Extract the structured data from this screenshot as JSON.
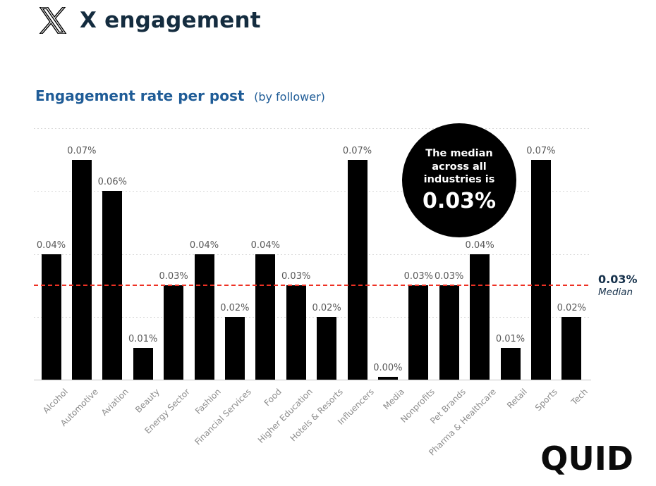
{
  "header": {
    "title": "X engagement",
    "logo": "x-logo"
  },
  "subtitle": {
    "main": "Engagement rate per post",
    "suffix": "(by follower)"
  },
  "chart_data": {
    "type": "bar",
    "title": "Engagement rate per post (by follower)",
    "xlabel": "",
    "ylabel": "Engagement rate",
    "ylim": [
      0,
      0.08
    ],
    "grid": "horizontal-dotted",
    "gridline_values": [
      0.02,
      0.04,
      0.06,
      0.08
    ],
    "bar_color": "#000000",
    "categories": [
      "Alcohol",
      "Automotive",
      "Aviation",
      "Beauty",
      "Energy Sector",
      "Fashion",
      "Financial Services",
      "Food",
      "Higher Education",
      "Hotels & Resorts",
      "Influencers",
      "Media",
      "Nonprofits",
      "Pet Brands",
      "Pharma & Healthcare",
      "Retail",
      "Sports",
      "Tech"
    ],
    "values": [
      0.04,
      0.07,
      0.06,
      0.01,
      0.03,
      0.04,
      0.02,
      0.04,
      0.03,
      0.02,
      0.07,
      0.0,
      0.03,
      0.03,
      0.04,
      0.01,
      0.07,
      0.02
    ],
    "labels": [
      "0.04%",
      "0.07%",
      "0.06%",
      "0.01%",
      "0.03%",
      "0.04%",
      "0.02%",
      "0.04%",
      "0.03%",
      "0.02%",
      "0.07%",
      "0.00%",
      "0.03%",
      "0.03%",
      "0.04%",
      "0.01%",
      "0.07%",
      "0.02%"
    ],
    "median": {
      "value": 0.03,
      "label": "0.03%",
      "sublabel": "Median",
      "line_color": "#ee3124",
      "label_color": "#17324c"
    },
    "annotation": {
      "lines": [
        "The median",
        "across all",
        "industries is"
      ],
      "value": "0.03%",
      "bg": "#000000",
      "text_color": "#ffffff"
    }
  },
  "footer": {
    "brand": "QUID"
  }
}
